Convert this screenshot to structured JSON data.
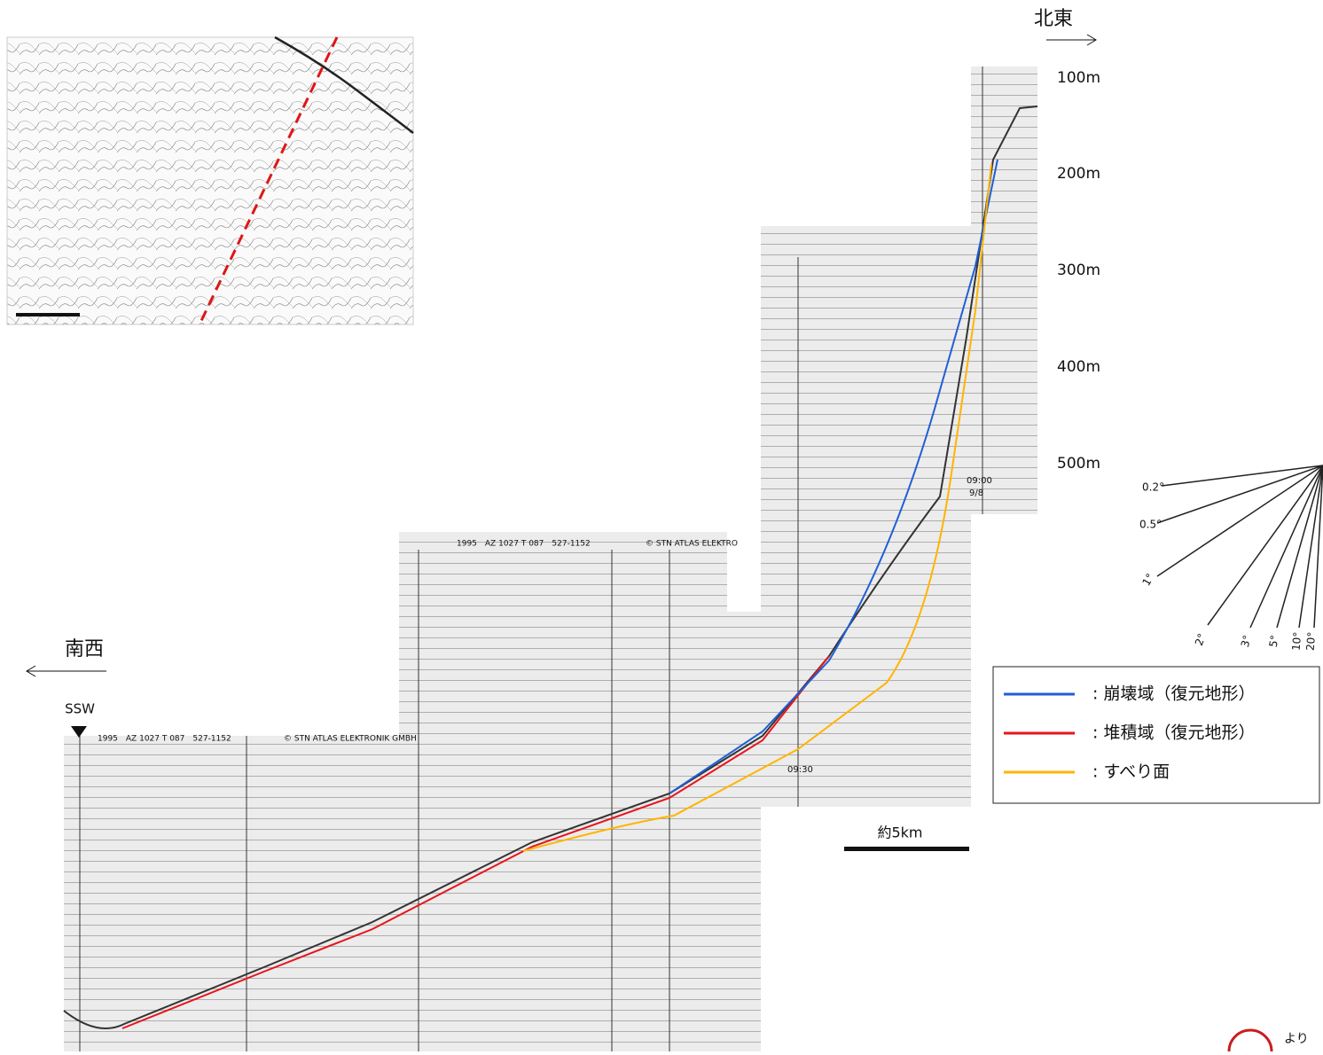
{
  "directions": {
    "northeast": "北東",
    "southwest": "南西",
    "start": "SSW"
  },
  "depth_labels": [
    "100m",
    "200m",
    "300m",
    "400m",
    "500m"
  ],
  "angle_labels": [
    "0.2°",
    "0.5°",
    "1°",
    "2°",
    "3°",
    "5°",
    "10°",
    "20°"
  ],
  "legend": [
    {
      "color": "#1f5fd6",
      "label": ": 崩壊域（復元地形）"
    },
    {
      "color": "#e8141b",
      "label": ": 堆積域（復元地形）"
    },
    {
      "color": "#ffb400",
      "label": ": すべり面"
    }
  ],
  "scale_label": "約5km",
  "record_headers": {
    "left": "1995　AZ 1027 T 087　527-1152",
    "left_brand": "© STN ATLAS ELEKTRONIK GMBH",
    "middle": "1995　AZ 1027 T 087　527-1152",
    "middle_brand": "© STN ATLAS ELEKTRO"
  },
  "times": {
    "first": "09:00",
    "date": "9/8",
    "second": "09:30"
  },
  "corner_note": "より"
}
